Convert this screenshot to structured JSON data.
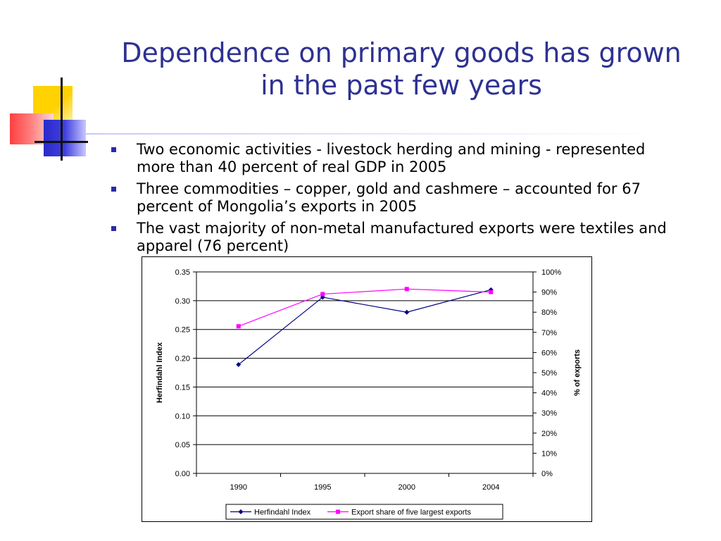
{
  "slide": {
    "title_line1": "Dependence on primary goods has grown",
    "title_line2": "in the past few years",
    "bullets": [
      "Two economic activities - livestock herding and mining - represented more than 40 percent of real GDP in 2005",
      "Three commodities – copper, gold and cashmere – accounted for 67 percent of Mongolia’s exports in 2005",
      "The vast majority of non-metal manufactured exports were textiles and apparel (76 percent)"
    ]
  },
  "chart_data": {
    "type": "line",
    "categories": [
      "1990",
      "1995",
      "2000",
      "2004"
    ],
    "series": [
      {
        "name": "Herfindahl Index",
        "axis": "left",
        "values": [
          0.189,
          0.306,
          0.28,
          0.319
        ],
        "color": "#000080",
        "marker": "diamond"
      },
      {
        "name": "Export share of five largest exports",
        "axis": "right",
        "values": [
          0.73,
          0.89,
          0.915,
          0.9
        ],
        "color": "#ff00ff",
        "marker": "square"
      }
    ],
    "ylabel": "Herfindahl Index",
    "y2label": "% of exports",
    "ylim": [
      0,
      0.35
    ],
    "y2lim": [
      0,
      1
    ],
    "yticks": [
      "0.00",
      "0.05",
      "0.10",
      "0.15",
      "0.20",
      "0.25",
      "0.30",
      "0.35"
    ],
    "y2ticks": [
      "0%",
      "10%",
      "20%",
      "30%",
      "40%",
      "50%",
      "60%",
      "70%",
      "80%",
      "90%",
      "100%"
    ],
    "grid": "horizontal",
    "legend_position": "bottom"
  }
}
